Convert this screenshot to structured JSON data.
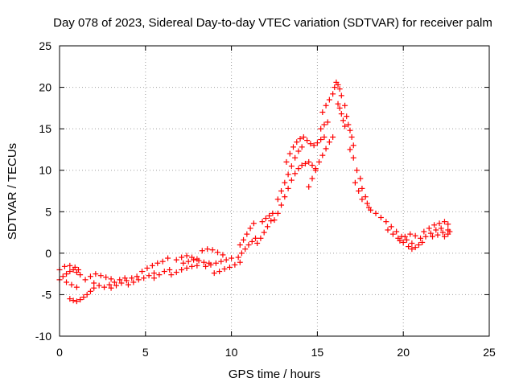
{
  "chart_data": {
    "type": "scatter",
    "title": "Day 078 of 2023, Sidereal Day-to-day VTEC variation (SDTVAR) for receiver palm",
    "xlabel": "GPS time / hours",
    "ylabel": "SDTVAR / TECUs",
    "xlim": [
      0,
      25
    ],
    "ylim": [
      -10,
      25
    ],
    "xticks": [
      "0",
      "5",
      "10",
      "15",
      "20",
      "25"
    ],
    "yticks": [
      "-10",
      "-5",
      "0",
      "5",
      "10",
      "15",
      "20",
      "25"
    ],
    "grid": true,
    "marker": "+",
    "color": "#ff0000",
    "series": [
      {
        "name": "SDTVAR",
        "points": [
          [
            0.0,
            -3.2
          ],
          [
            0.2,
            -2.8
          ],
          [
            0.4,
            -2.5
          ],
          [
            0.6,
            -2.2
          ],
          [
            0.8,
            -2.0
          ],
          [
            1.0,
            -2.3
          ],
          [
            1.2,
            -2.6
          ],
          [
            0.0,
            -2.0
          ],
          [
            0.3,
            -1.6
          ],
          [
            0.6,
            -1.5
          ],
          [
            0.9,
            -1.7
          ],
          [
            1.1,
            -2.0
          ],
          [
            0.4,
            -3.5
          ],
          [
            0.7,
            -3.8
          ],
          [
            1.0,
            -4.1
          ],
          [
            0.6,
            -5.5
          ],
          [
            0.8,
            -5.7
          ],
          [
            1.0,
            -5.8
          ],
          [
            1.2,
            -5.6
          ],
          [
            1.4,
            -5.3
          ],
          [
            1.6,
            -5.0
          ],
          [
            1.8,
            -4.6
          ],
          [
            2.0,
            -4.2
          ],
          [
            1.5,
            -3.2
          ],
          [
            1.8,
            -2.8
          ],
          [
            2.1,
            -2.5
          ],
          [
            2.4,
            -2.7
          ],
          [
            2.7,
            -2.9
          ],
          [
            3.0,
            -3.1
          ],
          [
            2.0,
            -3.6
          ],
          [
            2.3,
            -3.9
          ],
          [
            2.6,
            -4.1
          ],
          [
            2.9,
            -3.8
          ],
          [
            3.2,
            -3.5
          ],
          [
            3.5,
            -3.2
          ],
          [
            3.8,
            -3.0
          ],
          [
            3.0,
            -4.2
          ],
          [
            3.3,
            -3.9
          ],
          [
            3.6,
            -3.6
          ],
          [
            3.9,
            -3.3
          ],
          [
            4.2,
            -3.0
          ],
          [
            4.5,
            -2.8
          ],
          [
            4.0,
            -3.8
          ],
          [
            4.3,
            -3.5
          ],
          [
            4.6,
            -3.2
          ],
          [
            4.9,
            -3.0
          ],
          [
            5.2,
            -2.7
          ],
          [
            5.5,
            -2.4
          ],
          [
            4.8,
            -2.2
          ],
          [
            5.1,
            -1.8
          ],
          [
            5.4,
            -1.5
          ],
          [
            5.7,
            -1.2
          ],
          [
            6.0,
            -1.0
          ],
          [
            6.3,
            -0.6
          ],
          [
            5.5,
            -3.0
          ],
          [
            5.8,
            -2.6
          ],
          [
            6.1,
            -2.2
          ],
          [
            6.4,
            -2.0
          ],
          [
            6.5,
            -2.6
          ],
          [
            6.8,
            -2.3
          ],
          [
            7.1,
            -2.0
          ],
          [
            7.4,
            -1.8
          ],
          [
            7.7,
            -1.6
          ],
          [
            8.0,
            -1.5
          ],
          [
            6.8,
            -0.8
          ],
          [
            7.1,
            -0.5
          ],
          [
            7.4,
            -0.3
          ],
          [
            7.7,
            -0.5
          ],
          [
            8.0,
            -0.7
          ],
          [
            7.2,
            -1.2
          ],
          [
            7.5,
            -1.0
          ],
          [
            7.8,
            -0.8
          ],
          [
            8.1,
            -0.9
          ],
          [
            8.4,
            -1.1
          ],
          [
            8.7,
            -1.2
          ],
          [
            8.3,
            0.3
          ],
          [
            8.6,
            0.5
          ],
          [
            8.9,
            0.4
          ],
          [
            9.2,
            0.1
          ],
          [
            9.5,
            -0.2
          ],
          [
            8.5,
            -1.6
          ],
          [
            8.8,
            -1.4
          ],
          [
            9.1,
            -1.2
          ],
          [
            9.4,
            -1.0
          ],
          [
            9.7,
            -0.8
          ],
          [
            10.0,
            -0.6
          ],
          [
            9.0,
            -2.4
          ],
          [
            9.3,
            -2.2
          ],
          [
            9.6,
            -1.9
          ],
          [
            9.9,
            -1.7
          ],
          [
            10.2,
            -1.4
          ],
          [
            10.5,
            -1.1
          ],
          [
            10.4,
            -0.5
          ],
          [
            10.6,
            0.0
          ],
          [
            10.8,
            0.5
          ],
          [
            11.0,
            1.0
          ],
          [
            11.2,
            1.4
          ],
          [
            11.4,
            1.8
          ],
          [
            10.5,
            1.0
          ],
          [
            10.7,
            1.6
          ],
          [
            10.9,
            2.3
          ],
          [
            11.1,
            3.0
          ],
          [
            11.3,
            3.6
          ],
          [
            11.5,
            1.2
          ],
          [
            11.7,
            1.8
          ],
          [
            11.9,
            2.5
          ],
          [
            12.1,
            3.2
          ],
          [
            12.3,
            3.9
          ],
          [
            11.8,
            3.8
          ],
          [
            12.0,
            4.2
          ],
          [
            12.2,
            4.5
          ],
          [
            12.4,
            4.8
          ],
          [
            12.5,
            4.0
          ],
          [
            12.7,
            4.8
          ],
          [
            12.9,
            5.8
          ],
          [
            13.1,
            6.8
          ],
          [
            13.3,
            7.8
          ],
          [
            13.5,
            8.8
          ],
          [
            13.7,
            9.6
          ],
          [
            13.9,
            10.2
          ],
          [
            14.1,
            10.6
          ],
          [
            12.7,
            6.5
          ],
          [
            12.9,
            7.5
          ],
          [
            13.1,
            8.5
          ],
          [
            13.3,
            9.5
          ],
          [
            13.5,
            10.5
          ],
          [
            13.7,
            11.5
          ],
          [
            13.9,
            12.3
          ],
          [
            14.1,
            12.8
          ],
          [
            13.2,
            11.0
          ],
          [
            13.4,
            12.0
          ],
          [
            13.6,
            12.8
          ],
          [
            13.8,
            13.4
          ],
          [
            14.0,
            13.8
          ],
          [
            14.2,
            14.0
          ],
          [
            14.4,
            13.6
          ],
          [
            14.6,
            13.2
          ],
          [
            14.8,
            13.0
          ],
          [
            15.0,
            13.3
          ],
          [
            15.2,
            13.7
          ],
          [
            15.4,
            14.0
          ],
          [
            14.3,
            10.8
          ],
          [
            14.5,
            11.0
          ],
          [
            14.7,
            10.6
          ],
          [
            14.9,
            10.2
          ],
          [
            15.1,
            11.0
          ],
          [
            15.3,
            11.8
          ],
          [
            15.5,
            12.6
          ],
          [
            15.7,
            13.4
          ],
          [
            15.9,
            14.0
          ],
          [
            14.5,
            8.0
          ],
          [
            14.7,
            9.0
          ],
          [
            14.9,
            10.0
          ],
          [
            15.2,
            15.0
          ],
          [
            15.4,
            15.5
          ],
          [
            15.6,
            15.8
          ],
          [
            15.3,
            17.0
          ],
          [
            15.5,
            17.8
          ],
          [
            15.7,
            18.5
          ],
          [
            15.9,
            19.2
          ],
          [
            16.0,
            20.0
          ],
          [
            16.1,
            20.6
          ],
          [
            16.2,
            20.3
          ],
          [
            16.3,
            19.8
          ],
          [
            16.4,
            19.0
          ],
          [
            16.2,
            18.0
          ],
          [
            16.3,
            17.5
          ],
          [
            16.4,
            16.8
          ],
          [
            16.5,
            16.0
          ],
          [
            16.6,
            15.3
          ],
          [
            16.6,
            17.8
          ],
          [
            16.7,
            16.5
          ],
          [
            16.8,
            15.5
          ],
          [
            16.9,
            14.8
          ],
          [
            17.0,
            14.0
          ],
          [
            17.1,
            13.0
          ],
          [
            16.9,
            12.5
          ],
          [
            17.1,
            11.5
          ],
          [
            17.3,
            10.0
          ],
          [
            17.5,
            9.0
          ],
          [
            17.6,
            7.8
          ],
          [
            17.8,
            6.8
          ],
          [
            17.9,
            6.0
          ],
          [
            18.0,
            5.5
          ],
          [
            17.2,
            8.5
          ],
          [
            17.4,
            7.5
          ],
          [
            17.6,
            6.5
          ],
          [
            18.1,
            5.2
          ],
          [
            18.4,
            4.8
          ],
          [
            18.7,
            4.3
          ],
          [
            19.0,
            3.8
          ],
          [
            19.3,
            3.2
          ],
          [
            19.6,
            2.6
          ],
          [
            19.9,
            2.0
          ],
          [
            20.2,
            1.6
          ],
          [
            20.5,
            1.2
          ],
          [
            19.1,
            2.8
          ],
          [
            19.4,
            2.3
          ],
          [
            19.7,
            1.8
          ],
          [
            20.0,
            1.3
          ],
          [
            20.3,
            0.8
          ],
          [
            20.5,
            0.5
          ],
          [
            20.7,
            0.7
          ],
          [
            20.9,
            1.0
          ],
          [
            21.1,
            1.3
          ],
          [
            19.8,
            1.5
          ],
          [
            20.1,
            2.0
          ],
          [
            20.4,
            2.3
          ],
          [
            20.7,
            2.1
          ],
          [
            21.0,
            1.8
          ],
          [
            21.3,
            2.0
          ],
          [
            21.6,
            2.4
          ],
          [
            21.9,
            2.8
          ],
          [
            22.2,
            3.0
          ],
          [
            21.2,
            2.6
          ],
          [
            21.5,
            3.0
          ],
          [
            21.8,
            3.4
          ],
          [
            22.1,
            3.6
          ],
          [
            22.4,
            3.8
          ],
          [
            22.6,
            3.5
          ],
          [
            21.7,
            2.0
          ],
          [
            22.0,
            2.2
          ],
          [
            22.3,
            2.5
          ],
          [
            22.6,
            2.8
          ],
          [
            22.4,
            2.0
          ],
          [
            22.6,
            2.3
          ],
          [
            22.7,
            2.6
          ]
        ]
      }
    ]
  }
}
